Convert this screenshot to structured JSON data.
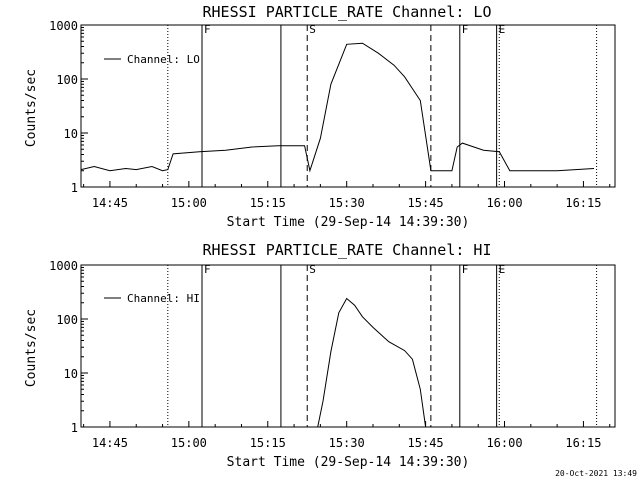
{
  "footer_timestamp": "20-Oct-2021 13:49",
  "chart_data": [
    {
      "type": "line",
      "title": "RHESSI PARTICLE_RATE Channel: LO",
      "xlabel": "Start Time (29-Sep-14 14:39:30)",
      "ylabel": "Counts/sec",
      "yscale": "log",
      "xlim": [
        "14:39:30",
        "16:21:00"
      ],
      "ylim": [
        1,
        1000
      ],
      "x_tick_labels": [
        "14:45",
        "15:00",
        "15:15",
        "15:30",
        "15:45",
        "16:00",
        "16:15"
      ],
      "y_tick_labels": [
        "1",
        "10",
        "100",
        "1000"
      ],
      "legend": {
        "label": "Channel: LO",
        "position": "top-left"
      },
      "markers": [
        {
          "time": "14:56:00",
          "style": "dotted",
          "label": ""
        },
        {
          "time": "15:02:30",
          "style": "solid",
          "label": "F"
        },
        {
          "time": "15:17:30",
          "style": "solid",
          "label": ""
        },
        {
          "time": "15:22:30",
          "style": "dashed",
          "label": "S"
        },
        {
          "time": "15:46:00",
          "style": "dashed",
          "label": ""
        },
        {
          "time": "15:51:30",
          "style": "solid",
          "label": "F"
        },
        {
          "time": "15:58:30",
          "style": "solid",
          "label": "E"
        },
        {
          "time": "15:59:00",
          "style": "dotted",
          "label": ""
        },
        {
          "time": "16:17:30",
          "style": "dotted",
          "label": ""
        }
      ],
      "series": [
        {
          "name": "Channel: LO",
          "x": [
            "14:39:30",
            "14:42:00",
            "14:45:00",
            "14:48:00",
            "14:50:00",
            "14:53:00",
            "14:55:00",
            "14:56:00",
            "14:57:00",
            "15:02:00",
            "15:07:00",
            "15:12:00",
            "15:17:00",
            "15:22:00",
            "15:23:00",
            "15:25:00",
            "15:27:00",
            "15:30:00",
            "15:33:00",
            "15:36:00",
            "15:39:00",
            "15:41:00",
            "15:44:00",
            "15:46:00",
            "15:50:00",
            "15:51:00",
            "15:52:00",
            "15:56:00",
            "15:59:00",
            "16:01:00",
            "16:05:00",
            "16:10:00",
            "16:17:00"
          ],
          "y": [
            2.1,
            2.4,
            2.0,
            2.2,
            2.1,
            2.4,
            2.0,
            2.1,
            4.1,
            4.5,
            4.8,
            5.5,
            5.8,
            5.8,
            2.0,
            8.0,
            80,
            440,
            460,
            300,
            180,
            110,
            40,
            2.0,
            2.0,
            5.5,
            6.5,
            4.8,
            4.5,
            2.0,
            2.0,
            2.0,
            2.2
          ]
        }
      ]
    },
    {
      "type": "line",
      "title": "RHESSI PARTICLE_RATE Channel: HI",
      "xlabel": "Start Time (29-Sep-14 14:39:30)",
      "ylabel": "Counts/sec",
      "yscale": "log",
      "xlim": [
        "14:39:30",
        "16:21:00"
      ],
      "ylim": [
        1,
        1000
      ],
      "x_tick_labels": [
        "14:45",
        "15:00",
        "15:15",
        "15:30",
        "15:45",
        "16:00",
        "16:15"
      ],
      "y_tick_labels": [
        "1",
        "10",
        "100",
        "1000"
      ],
      "legend": {
        "label": "Channel: HI",
        "position": "top-left"
      },
      "markers": [
        {
          "time": "14:56:00",
          "style": "dotted",
          "label": ""
        },
        {
          "time": "15:02:30",
          "style": "solid",
          "label": "F"
        },
        {
          "time": "15:17:30",
          "style": "solid",
          "label": ""
        },
        {
          "time": "15:22:30",
          "style": "dashed",
          "label": "S"
        },
        {
          "time": "15:46:00",
          "style": "dashed",
          "label": ""
        },
        {
          "time": "15:51:30",
          "style": "solid",
          "label": "F"
        },
        {
          "time": "15:58:30",
          "style": "solid",
          "label": "E"
        },
        {
          "time": "15:59:00",
          "style": "dotted",
          "label": ""
        },
        {
          "time": "16:17:30",
          "style": "dotted",
          "label": ""
        }
      ],
      "series": [
        {
          "name": "Channel: HI",
          "x": [
            "15:24:30",
            "15:25:30",
            "15:27:00",
            "15:28:30",
            "15:30:00",
            "15:31:30",
            "15:33:00",
            "15:35:00",
            "15:38:00",
            "15:41:00",
            "15:42:30",
            "15:44:00",
            "15:45:00"
          ],
          "y": [
            1.0,
            3.0,
            25,
            130,
            240,
            180,
            110,
            70,
            38,
            26,
            18,
            5,
            1.0
          ]
        }
      ]
    }
  ]
}
